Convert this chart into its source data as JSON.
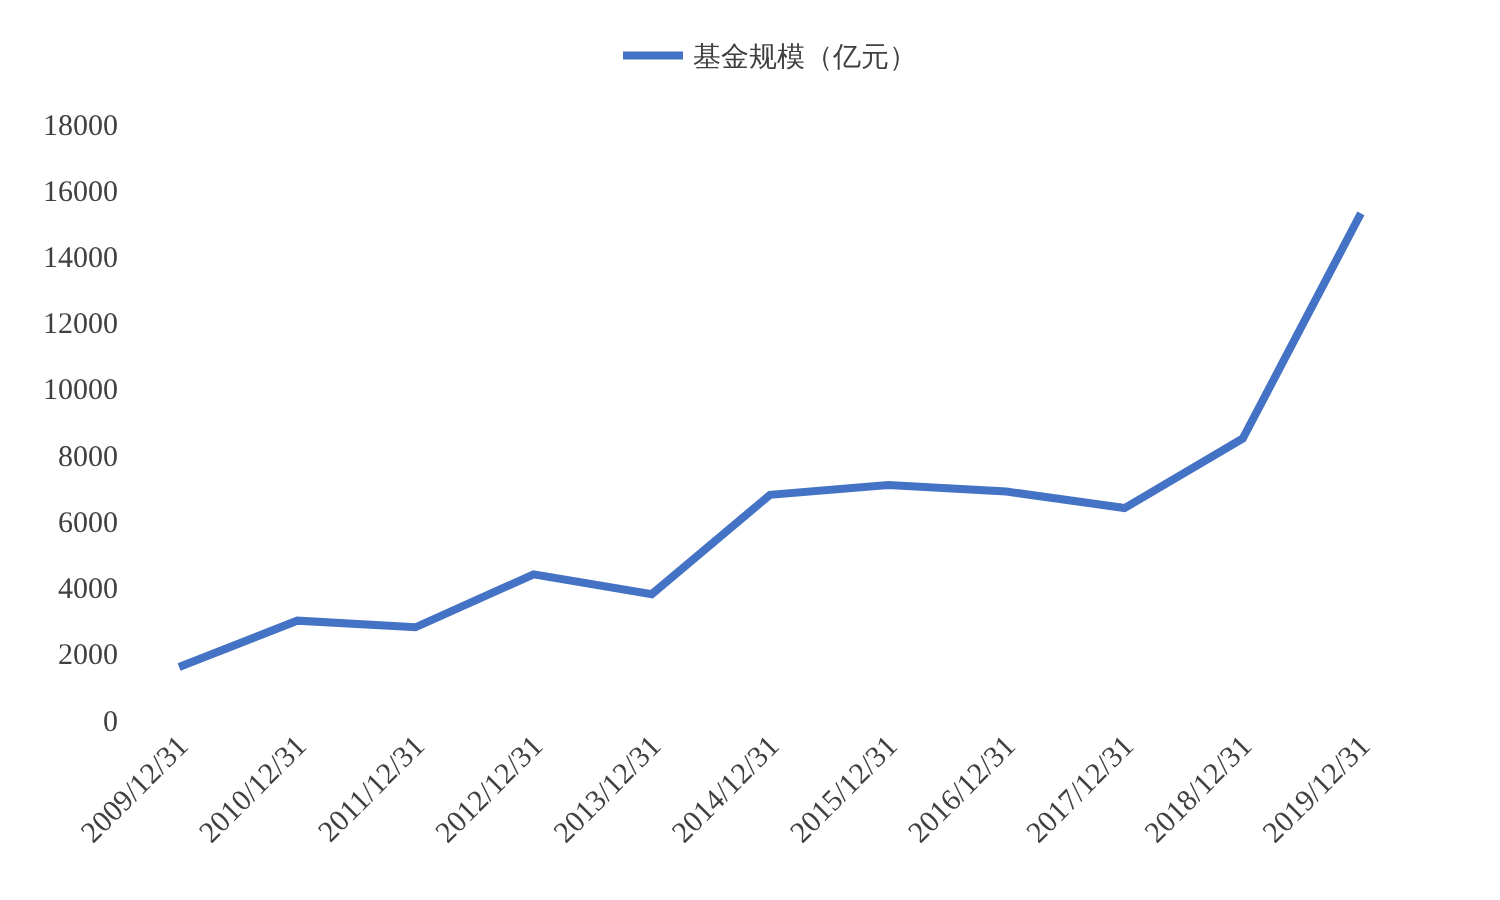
{
  "chart_data": {
    "type": "line",
    "categories": [
      "2009/12/31",
      "2010/12/31",
      "2011/12/31",
      "2012/12/31",
      "2013/12/31",
      "2014/12/31",
      "2015/12/31",
      "2016/12/31",
      "2017/12/31",
      "2018/12/31",
      "2019/12/31"
    ],
    "series": [
      {
        "name": "基金规模（亿元）",
        "color": "#4472c4",
        "values": [
          1600,
          3000,
          2800,
          4400,
          3800,
          6800,
          7100,
          6900,
          6400,
          8500,
          15300
        ]
      }
    ],
    "ylim": [
      0,
      18000
    ],
    "yticks": [
      0,
      2000,
      4000,
      6000,
      8000,
      10000,
      12000,
      14000,
      16000,
      18000
    ],
    "legend": "top",
    "marker": "none",
    "line_style": "solid"
  }
}
